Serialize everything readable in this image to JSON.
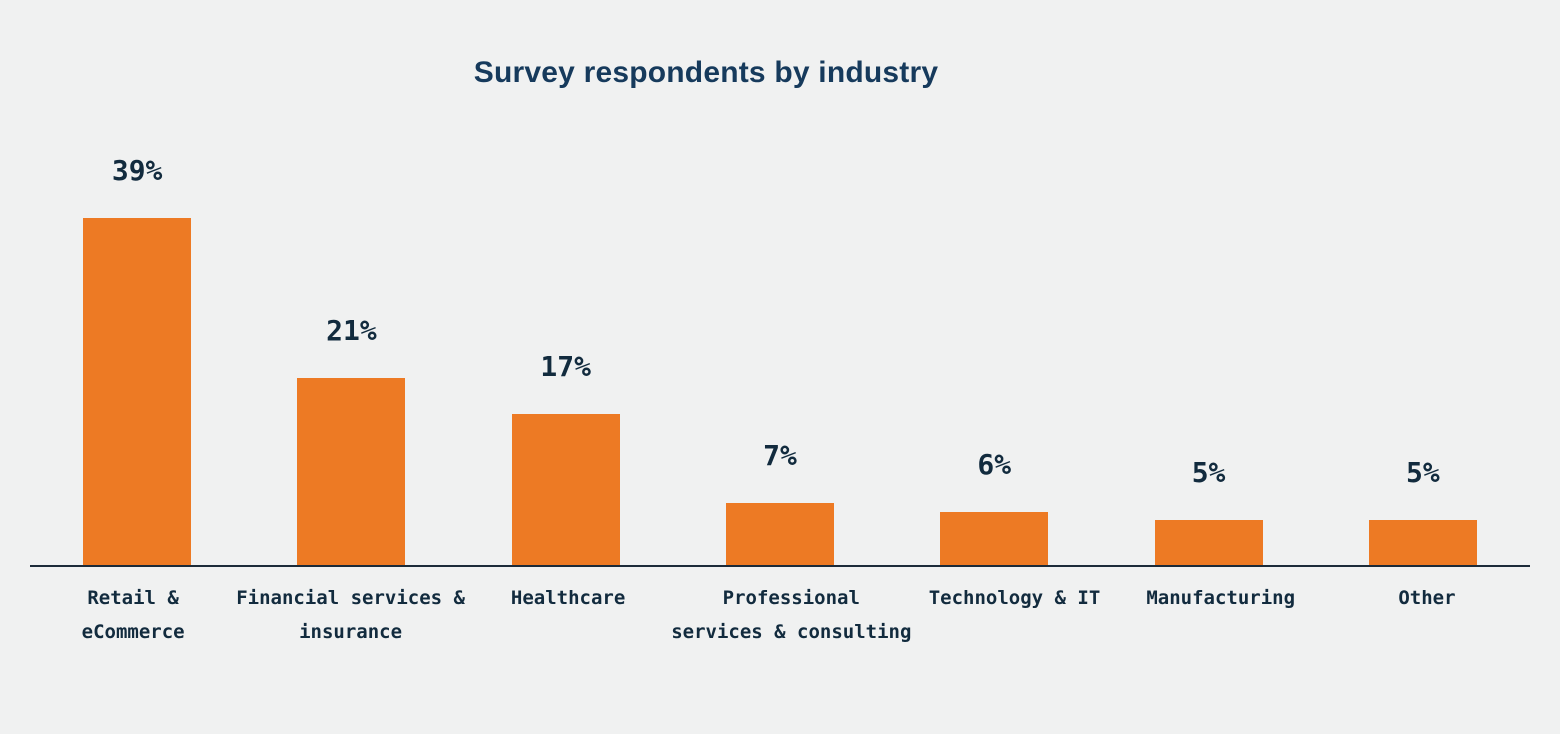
{
  "page": {
    "background": "#F0F1F1"
  },
  "header": {
    "title": "Survey respondents by industry"
  },
  "chart_data": {
    "type": "bar",
    "title": "Survey respondents by industry",
    "unit": "%",
    "ylim": [
      0,
      40
    ],
    "grid": false,
    "legend": "none",
    "value_labels_position": "above bars",
    "bar_color": "#ED7A24",
    "label_color": "#122B3E",
    "title_color": "#163A5C",
    "axis_color": "#1C2B39",
    "background_color": "#F0F1F1",
    "categories": [
      "Retail & eCommerce",
      "Financial services & insurance",
      "Healthcare",
      "Professional services & consulting",
      "Technology & IT",
      "Manufacturing",
      "Other"
    ],
    "values": [
      39,
      21,
      17,
      7,
      6,
      5,
      5
    ],
    "bars": [
      {
        "category": "Retail & eCommerce",
        "value": 39,
        "label": "39%",
        "line1": "Retail &",
        "line2": "eCommerce"
      },
      {
        "category": "Financial services & insurance",
        "value": 21,
        "label": "21%",
        "line1": "Financial services &",
        "line2": "insurance"
      },
      {
        "category": "Healthcare",
        "value": 17,
        "label": "17%",
        "line1": "Healthcare",
        "line2": ""
      },
      {
        "category": "Professional services & consulting",
        "value": 7,
        "label": "7%",
        "line1": "Professional",
        "line2": "services & consulting"
      },
      {
        "category": "Technology & IT",
        "value": 6,
        "label": "6%",
        "line1": "Technology & IT",
        "line2": ""
      },
      {
        "category": "Manufacturing",
        "value": 5,
        "label": "5%",
        "line1": "Manufacturing",
        "line2": ""
      },
      {
        "category": "Other",
        "value": 5,
        "label": "5%",
        "line1": "Other",
        "line2": ""
      }
    ]
  }
}
